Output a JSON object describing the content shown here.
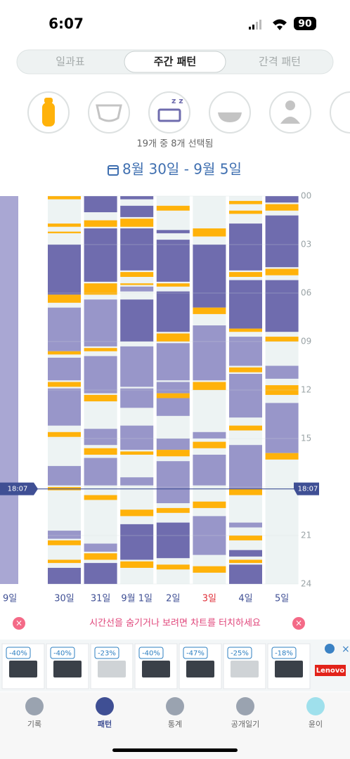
{
  "status_bar": {
    "time": "6:07",
    "battery": "90"
  },
  "tabs": [
    "일과표",
    "주간 패턴",
    "간격 패턴"
  ],
  "selected_tab": 1,
  "filter_summary": "19개 중 8개 선택됨",
  "date_range": "8월 30일 - 9월 5일",
  "chart_data": {
    "type": "timeline",
    "ylim": [
      0,
      24
    ],
    "yticks": [
      {
        "value": 0,
        "label": "00"
      },
      {
        "value": 3,
        "label": "03"
      },
      {
        "value": 6,
        "label": "06"
      },
      {
        "value": 9,
        "label": "09"
      },
      12,
      15,
      18,
      21,
      24
    ],
    "colors": {
      "d": "#6f6cae",
      "l": "#9896c9",
      "f": "#ffb20a"
    },
    "now": {
      "value": 18.1167,
      "label": "18:07"
    },
    "partial_label": "9일",
    "days": [
      {
        "label": "30일",
        "label_color": "#3f4f94",
        "blocks": [
          [
            0,
            0.2,
            "f"
          ],
          [
            1.7,
            1.9,
            "f"
          ],
          [
            2.2,
            2.3,
            "f"
          ],
          [
            3,
            6.1,
            "d"
          ],
          [
            6.1,
            6.6,
            "f"
          ],
          [
            6.9,
            9.6,
            "l"
          ],
          [
            9.6,
            9.8,
            "f"
          ],
          [
            10,
            11.4,
            "l"
          ],
          [
            11.5,
            11.8,
            "f"
          ],
          [
            11.9,
            14.2,
            "l"
          ],
          [
            14.6,
            14.9,
            "f"
          ],
          [
            16.7,
            17.9,
            "l"
          ],
          [
            18,
            18.2,
            "f"
          ],
          [
            20.7,
            21.2,
            "l"
          ],
          [
            21.3,
            21.6,
            "f"
          ],
          [
            22.5,
            22.7,
            "f"
          ],
          [
            23,
            24,
            "d"
          ]
        ]
      },
      {
        "label": "31일",
        "label_color": "#3f4f94",
        "blocks": [
          [
            0,
            1,
            "d"
          ],
          [
            1.5,
            1.9,
            "f"
          ],
          [
            2,
            5.3,
            "d"
          ],
          [
            5.4,
            6.1,
            "f"
          ],
          [
            6.4,
            9.3,
            "l"
          ],
          [
            9.4,
            9.6,
            "f"
          ],
          [
            9.9,
            12.2,
            "l"
          ],
          [
            12.3,
            12.7,
            "f"
          ],
          [
            14.4,
            15.4,
            "l"
          ],
          [
            15.6,
            16,
            "f"
          ],
          [
            16.2,
            17.9,
            "l"
          ],
          [
            18.5,
            18.8,
            "f"
          ],
          [
            21.5,
            22,
            "l"
          ],
          [
            22.1,
            22.5,
            "f"
          ],
          [
            22.7,
            24,
            "d"
          ]
        ]
      },
      {
        "label": "9월 1일",
        "label_color": "#3f4f94",
        "blocks": [
          [
            0,
            0.2,
            "d"
          ],
          [
            0.6,
            1.3,
            "d"
          ],
          [
            1.4,
            1.9,
            "f"
          ],
          [
            2,
            4.6,
            "d"
          ],
          [
            4.7,
            5,
            "f"
          ],
          [
            5.4,
            5.5,
            "f"
          ],
          [
            5.6,
            5.9,
            "l"
          ],
          [
            6.4,
            9,
            "d"
          ],
          [
            9.3,
            11.8,
            "l"
          ],
          [
            11.9,
            13.1,
            "l"
          ],
          [
            14.2,
            15.7,
            "l"
          ],
          [
            15.8,
            16,
            "f"
          ],
          [
            17.4,
            17.9,
            "l"
          ],
          [
            19.4,
            19.8,
            "f"
          ],
          [
            20.3,
            22.5,
            "d"
          ],
          [
            22.6,
            23,
            "f"
          ]
        ]
      },
      {
        "label": "2일",
        "label_color": "#3f4f94",
        "blocks": [
          [
            0.6,
            0.9,
            "f"
          ],
          [
            2.1,
            2.3,
            "d"
          ],
          [
            2.7,
            5.3,
            "d"
          ],
          [
            5.4,
            5.6,
            "f"
          ],
          [
            5.9,
            8.4,
            "d"
          ],
          [
            8.5,
            9,
            "f"
          ],
          [
            9.1,
            11.4,
            "l"
          ],
          [
            11.5,
            12.2,
            "l"
          ],
          [
            12.2,
            12.5,
            "f"
          ],
          [
            12.5,
            13.6,
            "l"
          ],
          [
            15,
            15.7,
            "l"
          ],
          [
            15.7,
            16.1,
            "f"
          ],
          [
            16.4,
            19,
            "l"
          ],
          [
            19.3,
            19.6,
            "f"
          ],
          [
            20.2,
            22.4,
            "d"
          ],
          [
            22.8,
            23.1,
            "f"
          ]
        ]
      },
      {
        "label": "3일",
        "label_color": "#e0303a",
        "blocks": [
          [
            2,
            2.5,
            "f"
          ],
          [
            3,
            6.9,
            "d"
          ],
          [
            6.9,
            7.3,
            "f"
          ],
          [
            8,
            11.4,
            "l"
          ],
          [
            11.5,
            12,
            "f"
          ],
          [
            14.6,
            15,
            "l"
          ],
          [
            15.2,
            15.6,
            "f"
          ],
          [
            16,
            17.9,
            "l"
          ],
          [
            18.9,
            19.3,
            "f"
          ],
          [
            19.8,
            22.2,
            "l"
          ],
          [
            22.9,
            23.3,
            "f"
          ]
        ]
      },
      {
        "label": "4일",
        "label_color": "#3f4f94",
        "blocks": [
          [
            0.3,
            0.5,
            "f"
          ],
          [
            0.9,
            1.1,
            "f"
          ],
          [
            1.7,
            4.6,
            "d"
          ],
          [
            4.7,
            5,
            "f"
          ],
          [
            5.2,
            8.2,
            "d"
          ],
          [
            8.2,
            8.4,
            "f"
          ],
          [
            8.7,
            10.5,
            "l"
          ],
          [
            10.6,
            10.9,
            "f"
          ],
          [
            11,
            13.7,
            "l"
          ],
          [
            14.2,
            14.5,
            "f"
          ],
          [
            15.4,
            18.1,
            "l"
          ],
          [
            18.1,
            18.5,
            "f"
          ],
          [
            20.2,
            20.5,
            "l"
          ],
          [
            21,
            21.3,
            "f"
          ],
          [
            21.9,
            22.3,
            "d"
          ],
          [
            22.5,
            22.7,
            "f"
          ],
          [
            22.8,
            24,
            "d"
          ]
        ]
      },
      {
        "label": "5일",
        "label_color": "#3f4f94",
        "blocks": [
          [
            0,
            0.4,
            "d"
          ],
          [
            0.5,
            0.9,
            "f"
          ],
          [
            1.2,
            4.4,
            "d"
          ],
          [
            4.5,
            4.9,
            "f"
          ],
          [
            5.2,
            8.4,
            "d"
          ],
          [
            8.7,
            9,
            "f"
          ],
          [
            10.5,
            11.3,
            "l"
          ],
          [
            11.7,
            12.3,
            "f"
          ],
          [
            12.8,
            15.9,
            "l"
          ],
          [
            15.9,
            16.3,
            "f"
          ]
        ]
      }
    ]
  },
  "hint": "시간선을 숨기거나 보려면 차트를 터치하세요",
  "ads": {
    "discounts": [
      "-40%",
      "-40%",
      "-23%",
      "-40%",
      "-47%",
      "-25%",
      "-18%"
    ],
    "brand": "Lenovo"
  },
  "nav": [
    "기록",
    "패턴",
    "통계",
    "공개일기",
    "윤이"
  ],
  "selected_nav": 1
}
